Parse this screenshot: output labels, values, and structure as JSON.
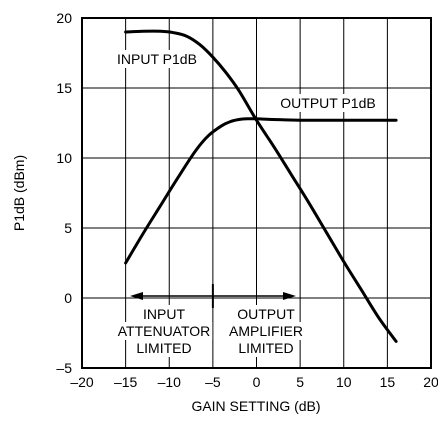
{
  "chart_data": {
    "type": "line",
    "title": "",
    "xlabel": "GAIN SETTING (dB)",
    "ylabel": "P1dB (dBm)",
    "xlim": [
      -20,
      20
    ],
    "ylim": [
      -5,
      20
    ],
    "x_ticks": [
      "–20",
      "–15",
      "–10",
      "–5",
      "0",
      "5",
      "10",
      "15",
      "20"
    ],
    "x_tick_values": [
      -20,
      -15,
      -10,
      -5,
      0,
      5,
      10,
      15,
      20
    ],
    "y_ticks": [
      "–5",
      "0",
      "5",
      "10",
      "15",
      "20"
    ],
    "y_tick_values": [
      -5,
      0,
      5,
      10,
      15,
      20
    ],
    "grid": true,
    "series": [
      {
        "name": "INPUT P1dB",
        "x": [
          -15,
          -13,
          -11,
          -9.5,
          -8,
          -6.5,
          -5,
          -3.5,
          -2,
          0,
          2,
          4,
          6,
          8,
          10,
          12,
          14,
          16
        ],
        "y": [
          19,
          19.05,
          19.05,
          18.95,
          18.7,
          18.1,
          17.2,
          16.1,
          14.8,
          12.7,
          10.8,
          8.8,
          6.8,
          4.7,
          2.6,
          0.6,
          -1.4,
          -3.1
        ]
      },
      {
        "name": "OUTPUT P1dB",
        "x": [
          -15,
          -13,
          -11,
          -9,
          -7,
          -5.5,
          -4,
          -3,
          -2,
          -1,
          0,
          2,
          5,
          10,
          16
        ],
        "y": [
          2.5,
          4.6,
          6.6,
          8.6,
          10.5,
          11.6,
          12.3,
          12.6,
          12.75,
          12.8,
          12.8,
          12.75,
          12.7,
          12.7,
          12.7
        ]
      }
    ],
    "annotations": {
      "input_p1db": "INPUT P1dB",
      "output_p1db": "OUTPUT P1dB",
      "region_left": [
        "INPUT",
        "ATTENUATOR",
        "LIMITED"
      ],
      "region_right": [
        "OUTPUT",
        "AMPLIFIER",
        "LIMITED"
      ],
      "boundary_x": -5
    }
  }
}
